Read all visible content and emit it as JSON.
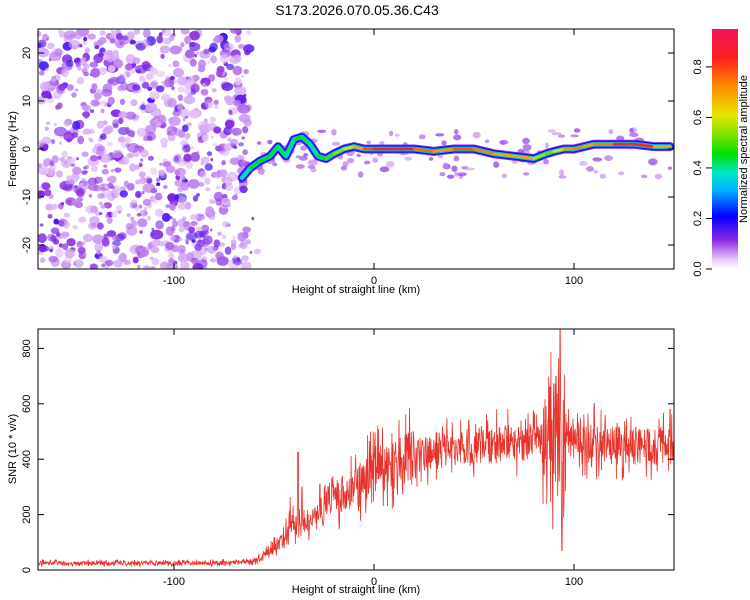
{
  "title": "S173.2026.070.05.36.C43",
  "chart_data": [
    {
      "type": "heatmap",
      "name": "spectrogram",
      "xlabel": "Height of straight line (km)",
      "ylabel": "Frequency (Hz)",
      "xlim": [
        -168,
        150
      ],
      "ylim": [
        -25,
        25
      ],
      "xticks": [
        -100,
        0,
        100
      ],
      "yticks": [
        -20,
        -10,
        0,
        10,
        20
      ],
      "colorbar": {
        "label": "Normalized spectral amplitude",
        "range": [
          0,
          0.95
        ],
        "ticks": [
          0.0,
          0.2,
          0.4,
          0.6,
          0.8
        ],
        "tick_labels": [
          "0.0",
          "0.2",
          "0.4",
          "0.6",
          "0.8"
        ]
      },
      "noise_region_x": [
        -168,
        -62
      ],
      "trace": [
        {
          "x": -66,
          "y": -6,
          "a": 0.3
        },
        {
          "x": -62,
          "y": -4,
          "a": 0.45
        },
        {
          "x": -57,
          "y": -2.5,
          "a": 0.5
        },
        {
          "x": -52,
          "y": -1.5,
          "a": 0.45
        },
        {
          "x": -48,
          "y": 0.5,
          "a": 0.5
        },
        {
          "x": -44,
          "y": -1.5,
          "a": 0.4
        },
        {
          "x": -40,
          "y": 2,
          "a": 0.45
        },
        {
          "x": -36,
          "y": 2.5,
          "a": 0.5
        },
        {
          "x": -32,
          "y": 1,
          "a": 0.4
        },
        {
          "x": -28,
          "y": -1.5,
          "a": 0.45
        },
        {
          "x": -24,
          "y": -2,
          "a": 0.5
        },
        {
          "x": -20,
          "y": -1,
          "a": 0.55
        },
        {
          "x": -15,
          "y": 0,
          "a": 0.6
        },
        {
          "x": -10,
          "y": 0.5,
          "a": 0.7
        },
        {
          "x": -5,
          "y": 0,
          "a": 0.75
        },
        {
          "x": 0,
          "y": 0,
          "a": 0.9
        },
        {
          "x": 10,
          "y": 0,
          "a": 0.95
        },
        {
          "x": 20,
          "y": 0,
          "a": 0.9
        },
        {
          "x": 30,
          "y": -0.5,
          "a": 0.7
        },
        {
          "x": 40,
          "y": 0,
          "a": 0.8
        },
        {
          "x": 50,
          "y": 0,
          "a": 0.85
        },
        {
          "x": 60,
          "y": -1,
          "a": 0.7
        },
        {
          "x": 70,
          "y": -1.5,
          "a": 0.75
        },
        {
          "x": 80,
          "y": -2,
          "a": 0.7
        },
        {
          "x": 86,
          "y": -1,
          "a": 0.5
        },
        {
          "x": 90,
          "y": -0.5,
          "a": 0.6
        },
        {
          "x": 95,
          "y": 0,
          "a": 0.7
        },
        {
          "x": 100,
          "y": 0,
          "a": 0.8
        },
        {
          "x": 105,
          "y": 0.5,
          "a": 0.75
        },
        {
          "x": 110,
          "y": 1,
          "a": 0.7
        },
        {
          "x": 120,
          "y": 1,
          "a": 0.85
        },
        {
          "x": 130,
          "y": 1,
          "a": 0.9
        },
        {
          "x": 140,
          "y": 0.5,
          "a": 0.85
        },
        {
          "x": 148,
          "y": 0.5,
          "a": 0.6
        }
      ]
    },
    {
      "type": "line",
      "name": "snr",
      "xlabel": "Height of straight line (km)",
      "ylabel": "SNR (10 * v/v)",
      "xlim": [
        -168,
        150
      ],
      "ylim": [
        0,
        870
      ],
      "xticks": [
        -100,
        0,
        100
      ],
      "yticks": [
        0,
        200,
        400,
        600,
        800
      ],
      "color": "#e8332a",
      "series": [
        {
          "name": "SNR",
          "x": [
            -168,
            -140,
            -110,
            -80,
            -60,
            -55,
            -50,
            -45,
            -41,
            -38,
            -35,
            -30,
            -25,
            -20,
            -15,
            -10,
            -5,
            0,
            10,
            20,
            30,
            40,
            50,
            60,
            70,
            80,
            85,
            88,
            90,
            92,
            93,
            95,
            100,
            110,
            120,
            130,
            140,
            150
          ],
          "y": [
            25,
            25,
            25,
            25,
            30,
            55,
            80,
            120,
            200,
            150,
            160,
            180,
            210,
            250,
            270,
            290,
            320,
            360,
            380,
            410,
            430,
            440,
            450,
            455,
            455,
            460,
            460,
            480,
            500,
            470,
            400,
            460,
            455,
            450,
            450,
            450,
            450,
            450
          ],
          "spikes": [
            {
              "x": -38,
              "y": 425
            },
            {
              "x": -36,
              "y": 300
            },
            {
              "x": -27,
              "y": 310
            },
            {
              "x": -23,
              "y": 300
            },
            {
              "x": -16,
              "y": 330
            },
            {
              "x": 88,
              "y": 660
            },
            {
              "x": 91,
              "y": 700
            },
            {
              "x": 93,
              "y": 870
            },
            {
              "x": 94,
              "y": 70
            },
            {
              "x": 110,
              "y": 600
            },
            {
              "x": 148,
              "y": 580
            }
          ]
        }
      ]
    }
  ]
}
